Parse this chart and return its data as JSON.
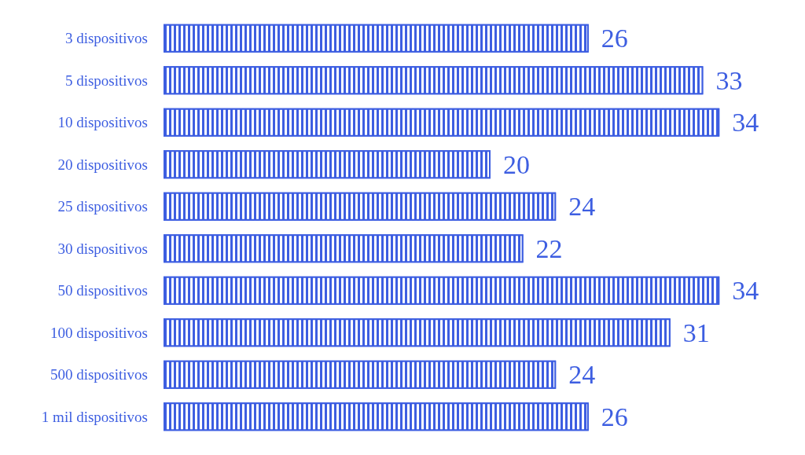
{
  "chart_data": {
    "type": "bar",
    "orientation": "horizontal",
    "categories": [
      "3 dispositivos",
      "5 dispositivos",
      "10 dispositivos",
      "20 dispositivos",
      "25 dispositivos",
      "30 dispositivos",
      "50 dispositivos",
      "100 dispositivos",
      "500 dispositivos",
      "1 mil dispositivos"
    ],
    "values": [
      26,
      33,
      34,
      20,
      24,
      22,
      34,
      31,
      24,
      26
    ],
    "color": "#3d5ee1",
    "data_labels": true
  }
}
